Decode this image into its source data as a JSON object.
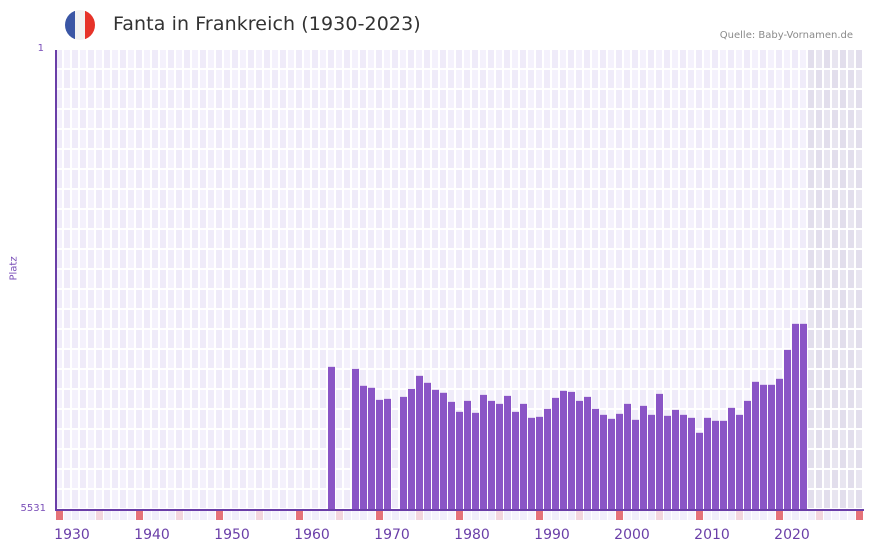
{
  "header": {
    "title": "Fanta in Frankreich (1930-2023)",
    "flag_icon": "france-flag-icon",
    "flag_colors": [
      "#3a56a5",
      "#f2f2f2",
      "#e63329"
    ],
    "source": "Quelle: Baby-Vornamen.de"
  },
  "colors": {
    "bar": "#8a55c6",
    "axis": "#6a3ea8",
    "grid_a": "#efebf9",
    "grid_b": "#f4f1fc",
    "future_shade": "#e4e0ee",
    "decade_marker": "#e57379",
    "half_decade_marker": "#f3d6de"
  },
  "chart_data": {
    "type": "bar",
    "title": "Fanta in Frankreich (1930-2023)",
    "xlabel": "",
    "ylabel": "Platz",
    "y_axis_inverted": true,
    "ylim": [
      5531,
      1
    ],
    "yticks": [
      "1",
      "5531"
    ],
    "xticks": [
      "1930",
      "1940",
      "1950",
      "1960",
      "1970",
      "1980",
      "1990",
      "2000",
      "2010",
      "2020"
    ],
    "x_range": [
      1928,
      2028
    ],
    "grid": true,
    "legend": null,
    "shaded_future_from": 2022,
    "categories": [
      1962,
      1965,
      1966,
      1967,
      1968,
      1969,
      1971,
      1972,
      1973,
      1974,
      1975,
      1976,
      1977,
      1978,
      1979,
      1980,
      1981,
      1982,
      1983,
      1984,
      1985,
      1986,
      1987,
      1988,
      1989,
      1990,
      1991,
      1992,
      1993,
      1994,
      1995,
      1996,
      1997,
      1998,
      1999,
      2000,
      2001,
      2002,
      2003,
      2004,
      2005,
      2006,
      2007,
      2008,
      2009,
      2010,
      2011,
      2012,
      2013,
      2014,
      2015,
      2016,
      2017,
      2018,
      2019,
      2020,
      2021
    ],
    "values": [
      3810,
      3834,
      4038,
      4062,
      4207,
      4195,
      4171,
      4075,
      3918,
      4002,
      4086,
      4122,
      4231,
      4351,
      4219,
      4363,
      4147,
      4219,
      4255,
      4159,
      4351,
      4255,
      4423,
      4411,
      4315,
      4183,
      4099,
      4111,
      4219,
      4171,
      4315,
      4387,
      4435,
      4375,
      4255,
      4447,
      4279,
      4387,
      4135,
      4399,
      4327,
      4387,
      4423,
      4603,
      4423,
      4459,
      4459,
      4303,
      4387,
      4219,
      3990,
      4026,
      4026,
      3954,
      3606,
      3293,
      3293
    ]
  }
}
